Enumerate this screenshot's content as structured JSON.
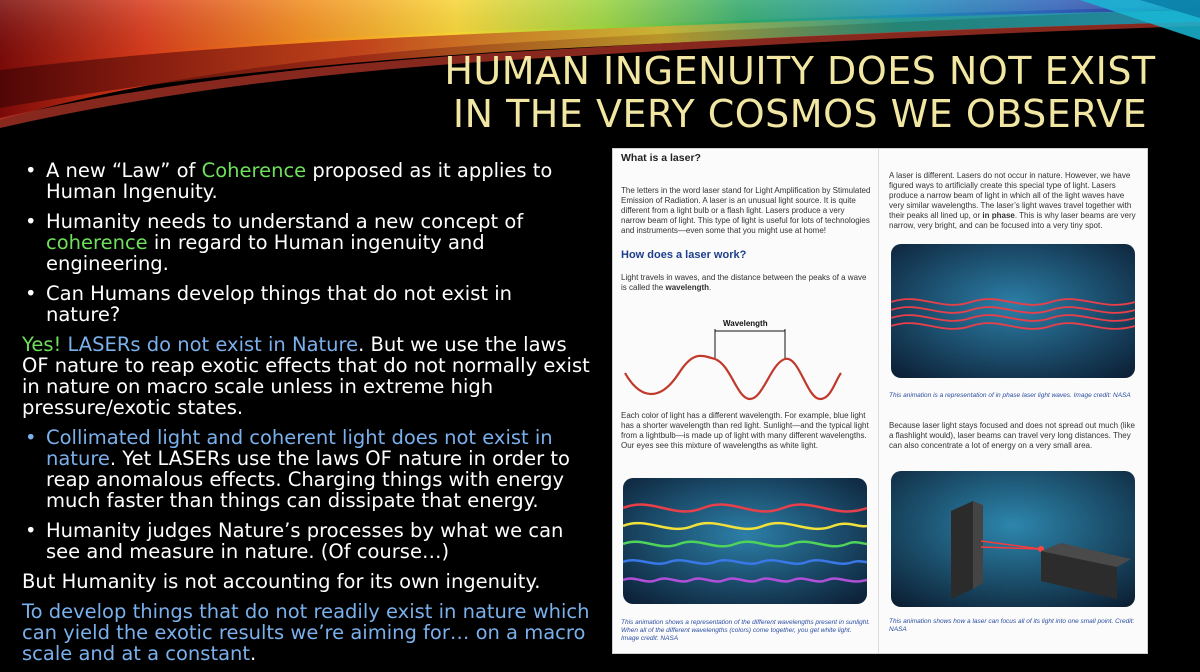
{
  "title": {
    "line1": "HUMAN INGENUITY DOES NOT EXIST",
    "line2": "IN THE VERY COSMOS WE OBSERVE"
  },
  "body": {
    "bullet1": {
      "pre": "A new “Law” of ",
      "hl": "Coherence",
      "post": " proposed as it applies to Human Ingenuity."
    },
    "bullet2": {
      "pre": "Humanity needs to understand a new concept of ",
      "hl": "coherence",
      "post": " in regard to Human ingenuity and engineering."
    },
    "bullet3": "Can Humans develop things that do not exist in nature?",
    "yes": {
      "yes": "Yes! ",
      "lasers": "LASERs do not exist in Nature",
      "post": ". But we use the laws OF nature to reap exotic effects that do not normally exist in nature on macro scale unless in extreme high pressure/exotic states."
    },
    "bullet4": {
      "hl": "Collimated light and coherent light does not exist in nature",
      "post": ". Yet LASERs use the laws OF nature in order to reap anomalous effects. Charging things with energy much faster than things can dissipate that energy."
    },
    "bullet5": "Humanity judges Nature’s processes by what we can see and measure in nature. (Of course…)",
    "para2": "But Humanity is not accounting for its own ingenuity.",
    "para3": {
      "hl": "To develop things that do not readily exist in nature which can yield the exotic results we’re aiming for… on a macro scale and at a constant",
      "post": "."
    }
  },
  "doc": {
    "what_heading": "What is a laser?",
    "intro": "The letters in the word laser stand for Light Amplification by Stimulated Emission of Radiation. A laser is an unusual light source. It is quite different from a light bulb or a flash light. Lasers produce a very narrow beam of light. This type of light is useful for lots of technologies and instruments—even some that you might use at home!",
    "how_heading": "How does a laser work?",
    "waves_pre": "Light travels in waves, and the distance between the peaks of a wave is called the ",
    "waves_bold": "wavelength",
    "waves_post": ".",
    "wavelength_label": "Wavelength",
    "color_text": "Each color of light has a different wavelength. For example, blue light has a shorter wavelength than red light. Sunlight—and the typical light from a lightbulb—is made up of light with many different wavelengths. Our eyes see this mixture of wavelengths as white light.",
    "caption_rainbow": "This animation shows a representation of the different wavelengths present in sunlight. When all of the different wavelengths (colors) come together, you get white light. Image credit: NASA",
    "right_text_pre": "A laser is different. Lasers do not occur in nature. However, we have figured ways to artificially create this special type of light. Lasers produce a narrow beam of light in which all of the light waves have very similar wavelengths. The laser’s light waves travel together with their peaks all lined up, or ",
    "right_text_bold": "in phase",
    "right_text_post": ". This is why laser beams are very narrow, very bright, and can be focused into a very tiny spot.",
    "caption_phase": "This animation is a representation of in phase laser light waves. Image credit: NASA",
    "focus_text": "Because laser light stays focused and does not spread out much (like a flashlight would), laser beams can travel very long distances. They can also concentrate a lot of energy on a very small area.",
    "caption_focus": "This animation shows how a laser can focus all of its light into one small point. Credit: NASA"
  },
  "colors": {
    "title": "#f1e6a2",
    "green": "#6fe05c",
    "blue": "#7ab0ec",
    "heading_blue": "#1d3f8c"
  }
}
